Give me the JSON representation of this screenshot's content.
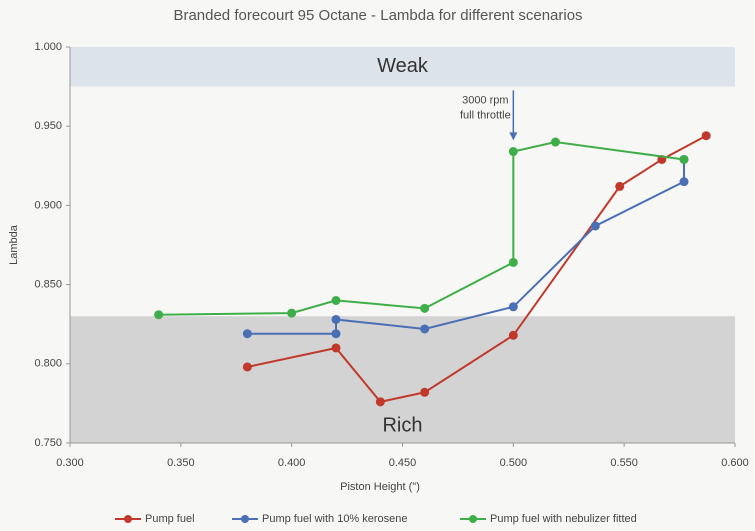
{
  "chart_data": {
    "type": "line",
    "title": "Branded forecourt 95 Octane - Lambda for different scenarios",
    "x_label": "Piston Height (\")",
    "y_label": "Lambda",
    "xlim": [
      0.3,
      0.6
    ],
    "ylim": [
      0.75,
      1.0
    ],
    "xticks": [
      {
        "value": 0.3,
        "label": "0.300"
      },
      {
        "value": 0.35,
        "label": "0.350"
      },
      {
        "value": 0.4,
        "label": "0.400"
      },
      {
        "value": 0.45,
        "label": "0.450"
      },
      {
        "value": 0.5,
        "label": "0.500"
      },
      {
        "value": 0.55,
        "label": "0.550"
      },
      {
        "value": 0.6,
        "label": "0.600"
      }
    ],
    "yticks": [
      {
        "value": 0.75,
        "label": "0.750"
      },
      {
        "value": 0.8,
        "label": "0.800"
      },
      {
        "value": 0.85,
        "label": "0.850"
      },
      {
        "value": 0.9,
        "label": "0.900"
      },
      {
        "value": 0.95,
        "label": "0.950"
      },
      {
        "value": 1.0,
        "label": "1.000"
      }
    ],
    "grid": false,
    "legend": "bottom",
    "regions": [
      {
        "label": "Weak",
        "from": 0.975,
        "to": 1.0,
        "color": "#dde3ea"
      },
      {
        "label": "Rich",
        "from": 0.75,
        "to": 0.83,
        "color": "#d3d3d3"
      }
    ],
    "annotation": {
      "text": [
        "3000 rpm",
        "full throttle"
      ],
      "x": 0.5,
      "y": 0.936
    },
    "series": [
      {
        "name": "Pump fuel",
        "color": "#c0392b",
        "x": [
          0.38,
          0.42,
          0.44,
          0.46,
          0.5,
          0.548,
          0.567,
          0.587
        ],
        "values": [
          0.798,
          0.81,
          0.776,
          0.782,
          0.818,
          0.912,
          0.929,
          0.944
        ]
      },
      {
        "name": "Pump fuel with 10% kerosene",
        "color": "#4a6fb5",
        "x": [
          0.38,
          0.42,
          0.42,
          0.46,
          0.5,
          0.537,
          0.577,
          0.577
        ],
        "values": [
          0.819,
          0.819,
          0.828,
          0.822,
          0.836,
          0.887,
          0.915,
          0.929
        ]
      },
      {
        "name": "Pump fuel with nebulizer fitted",
        "color": "#3fae49",
        "x": [
          0.34,
          0.4,
          0.42,
          0.46,
          0.5,
          0.5,
          0.519,
          0.577
        ],
        "values": [
          0.831,
          0.832,
          0.84,
          0.835,
          0.864,
          0.934,
          0.94,
          0.929
        ]
      }
    ]
  }
}
